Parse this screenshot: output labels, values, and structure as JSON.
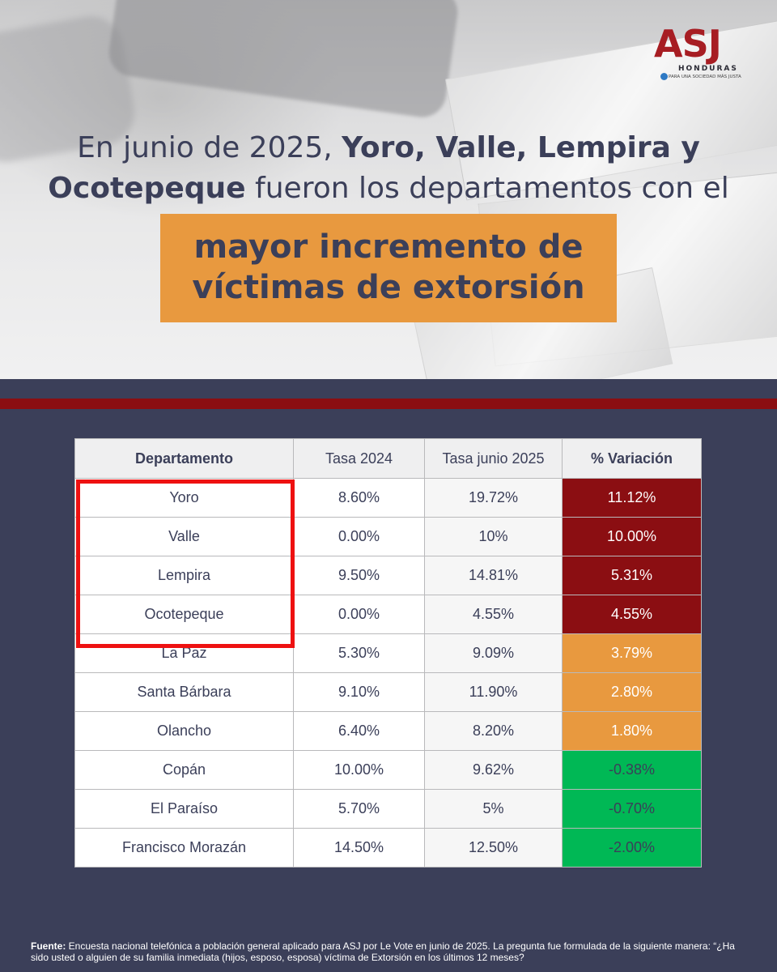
{
  "logo": {
    "text": "ASJ",
    "sub": "HONDURAS",
    "tagline": "PARA UNA SOCIEDAD MÁS JUSTA"
  },
  "headline": {
    "part1": "En junio de 2025, ",
    "bold1": "Yoro, Valle, Lempira y Ocotepeque",
    "part2": " fueron los departamentos con el"
  },
  "banner": {
    "line1": "mayor incremento de",
    "line2": "víctimas de extorsión"
  },
  "table": {
    "headers": [
      "Departamento",
      "Tasa 2024",
      "Tasa junio 2025",
      "% Variación"
    ],
    "rows": [
      {
        "dept": "Yoro",
        "t2024": "8.60%",
        "t2025": "19.72%",
        "var": "11.12%",
        "level": "hi"
      },
      {
        "dept": "Valle",
        "t2024": "0.00%",
        "t2025": "10%",
        "var": "10.00%",
        "level": "hi"
      },
      {
        "dept": "Lempira",
        "t2024": "9.50%",
        "t2025": "14.81%",
        "var": "5.31%",
        "level": "hi"
      },
      {
        "dept": "Ocotepeque",
        "t2024": "0.00%",
        "t2025": "4.55%",
        "var": "4.55%",
        "level": "hi"
      },
      {
        "dept": "La Paz",
        "t2024": "5.30%",
        "t2025": "9.09%",
        "var": "3.79%",
        "level": "mid"
      },
      {
        "dept": "Santa Bárbara",
        "t2024": "9.10%",
        "t2025": "11.90%",
        "var": "2.80%",
        "level": "mid"
      },
      {
        "dept": "Olancho",
        "t2024": "6.40%",
        "t2025": "8.20%",
        "var": "1.80%",
        "level": "mid"
      },
      {
        "dept": "Copán",
        "t2024": "10.00%",
        "t2025": "9.62%",
        "var": "-0.38%",
        "level": "lo"
      },
      {
        "dept": "El Paraíso",
        "t2024": "5.70%",
        "t2025": "5%",
        "var": "-0.70%",
        "level": "lo"
      },
      {
        "dept": "Francisco Morazán",
        "t2024": "14.50%",
        "t2025": "12.50%",
        "var": "-2.00%",
        "level": "lo"
      }
    ]
  },
  "colors": {
    "navy": "#3b3f59",
    "dark_red": "#8b0e12",
    "orange": "#e8993f",
    "green": "#00b855",
    "highlight_red": "#ee1111"
  },
  "source": {
    "label": "Fuente:",
    "text": " Encuesta nacional telefónica a población general aplicado para ASJ por Le Vote en junio de 2025. La pregunta fue formulada de la siguiente manera: “¿Ha sido usted o alguien de su familia inmediata (hijos, esposo, esposa) víctima de Extorsión en los últimos 12 meses?"
  }
}
